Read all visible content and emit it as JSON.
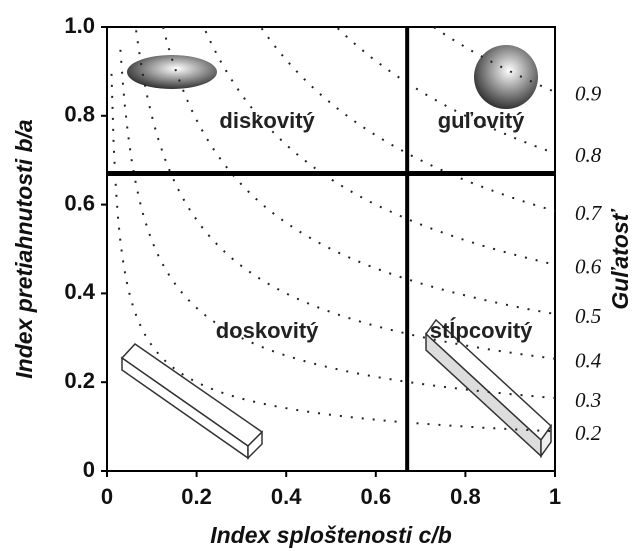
{
  "chart_data": {
    "type": "zingg",
    "xlabel": "Index sploštenosti c/b",
    "ylabel": "Index pretiahnutosti b/a",
    "y2label": "Guľatosť",
    "xlim": [
      0,
      1
    ],
    "ylim": [
      0,
      1
    ],
    "xticks": [
      0,
      0.2,
      0.4,
      0.6,
      0.8,
      1
    ],
    "yticks": [
      0,
      0.2,
      0.4,
      0.6,
      0.8,
      {
        "value": 1,
        "label": "1.0"
      }
    ],
    "x_divider": 0.67,
    "y_divider": 0.67,
    "regions": [
      "diskovitý",
      "guľovitý",
      "doskovitý",
      "stĺpcovitý"
    ],
    "contours": [
      0.9,
      0.8,
      0.7,
      0.6,
      0.5,
      0.4,
      0.3,
      0.2
    ]
  }
}
